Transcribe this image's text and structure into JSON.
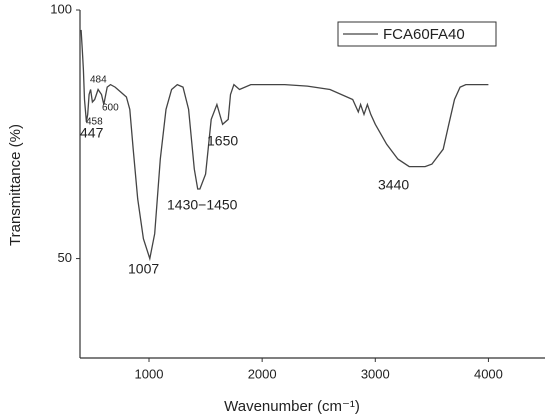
{
  "chart_data": {
    "type": "line",
    "x_label": "Wavenumber (cm⁻¹)",
    "y_label": "Transmittance (%)",
    "xlim": [
      390,
      4500
    ],
    "ylim": [
      30,
      100
    ],
    "xticks": [
      1000,
      2000,
      3000,
      4000
    ],
    "yticks": [
      50,
      100
    ],
    "grid": false,
    "legend": "top-right",
    "x": [
      400,
      410,
      420,
      430,
      447,
      458,
      470,
      484,
      500,
      520,
      550,
      580,
      600,
      630,
      660,
      700,
      750,
      800,
      830,
      860,
      900,
      950,
      1007,
      1050,
      1100,
      1150,
      1200,
      1250,
      1300,
      1350,
      1400,
      1430,
      1450,
      1500,
      1550,
      1600,
      1650,
      1700,
      1720,
      1750,
      1800,
      1900,
      2000,
      2200,
      2400,
      2600,
      2800,
      2850,
      2870,
      2900,
      2930,
      2960,
      3000,
      3100,
      3200,
      3300,
      3440,
      3500,
      3600,
      3650,
      3700,
      3750,
      3800,
      4000
    ],
    "series": [
      {
        "name": "FCA60FA40",
        "color": "#444444",
        "values": [
          96,
          92,
          88,
          82,
          77.5,
          79,
          83,
          84,
          81.5,
          82,
          84,
          83,
          81,
          84.5,
          85,
          84.5,
          83.5,
          82.5,
          80,
          72,
          62,
          54,
          50,
          55,
          70,
          80,
          84,
          85,
          84.5,
          80,
          68,
          64,
          64,
          67,
          78,
          81,
          77,
          78,
          83,
          85,
          84,
          85,
          85,
          85,
          84.7,
          84,
          82,
          79.5,
          81,
          79,
          81,
          79,
          77,
          73,
          70,
          68.5,
          68.5,
          69,
          72,
          77,
          82,
          84.5,
          85,
          85
        ]
      }
    ],
    "annotations": [
      "484",
      "600",
      "458",
      "447",
      "1650",
      "1430−1450",
      "1007",
      "3440"
    ]
  }
}
